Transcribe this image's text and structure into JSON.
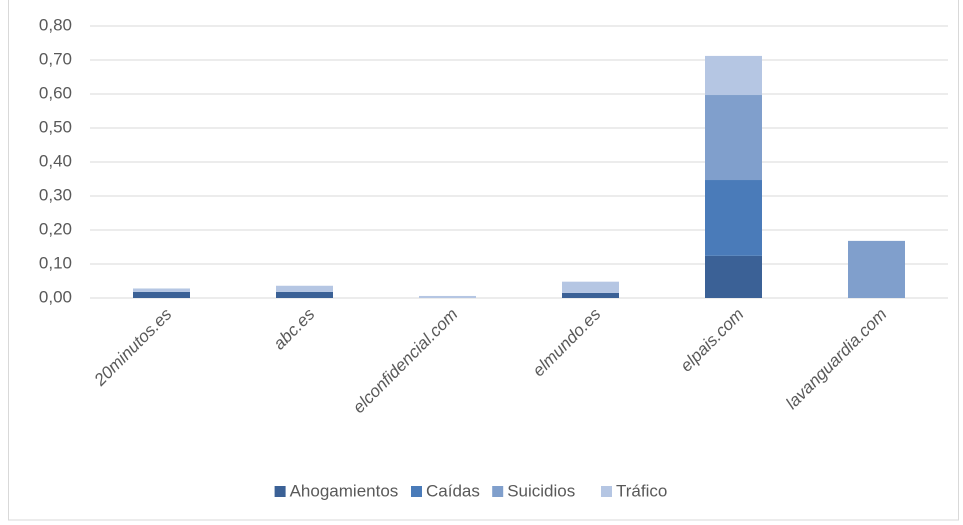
{
  "chart_data": {
    "type": "stacked_bar",
    "categories": [
      "20minutos.es",
      "abc.es",
      "elconfidencial.com",
      "elmundo.es",
      "elpais.com",
      "lavanguardia.com"
    ],
    "series": [
      {
        "name": "Ahogamientos",
        "color": "#3b6196",
        "values": [
          0.018,
          0.018,
          0,
          0.015,
          0.124,
          0
        ]
      },
      {
        "name": "Caídas",
        "color": "#4a7bb9",
        "values": [
          0,
          0,
          0,
          0,
          0.223,
          0
        ]
      },
      {
        "name": "Suicidios",
        "color": "#809fcc",
        "values": [
          0,
          0,
          0,
          0,
          0.25,
          0.168
        ]
      },
      {
        "name": "Tráfico",
        "color": "#b5c6e3",
        "values": [
          0.01,
          0.018,
          0.006,
          0.033,
          0.115,
          0
        ]
      }
    ],
    "ylim": [
      0,
      0.8
    ],
    "yticks": [
      {
        "value": 0,
        "label": "0,00"
      },
      {
        "value": 0.1,
        "label": "0,10"
      },
      {
        "value": 0.2,
        "label": "0,20"
      },
      {
        "value": 0.3,
        "label": "0,30"
      },
      {
        "value": 0.4,
        "label": "0,40"
      },
      {
        "value": 0.5,
        "label": "0,50"
      },
      {
        "value": 0.6,
        "label": "0,60"
      },
      {
        "value": 0.7,
        "label": "0,70"
      },
      {
        "value": 0.8,
        "label": "0,80"
      }
    ],
    "grid": true,
    "legend": "bottom"
  }
}
